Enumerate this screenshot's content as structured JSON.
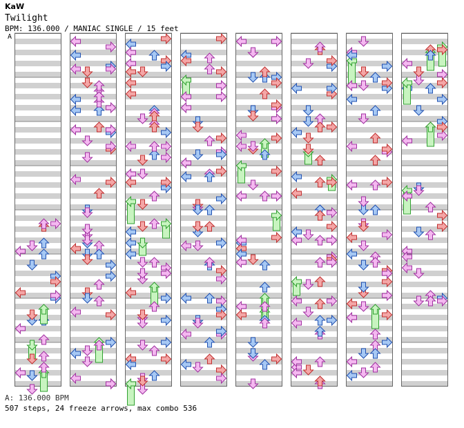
{
  "header": {
    "artist": "KaW",
    "title": "Twilight",
    "info": "BPM: 136.000 / MANIAC SINGLE / 15 feet"
  },
  "section_marker": "A",
  "footer": {
    "bpm_line": "A: 136.000 BPM",
    "stats_line": "507 steps, 24 freeze arrows, max combo 536"
  },
  "chart_meta": {
    "bpm": 136.0,
    "difficulty": "MANIAC",
    "style": "SINGLE",
    "feet": 15,
    "steps": 507,
    "freeze_arrows": 24,
    "max_combo": 536,
    "measures_per_column": 8,
    "lanes": [
      "left",
      "down",
      "up",
      "right"
    ]
  },
  "colors": {
    "quarter": "#f4a6a6",
    "quarter_stroke": "#c03030",
    "eighth": "#a6c8f4",
    "eighth_stroke": "#2050b0",
    "sixteenth": "#f4b8f0",
    "sixteenth_stroke": "#a030a0",
    "freeze": "#c8f4c0",
    "freeze_stroke": "#30a030",
    "stripe": "#d0d0d0"
  }
}
